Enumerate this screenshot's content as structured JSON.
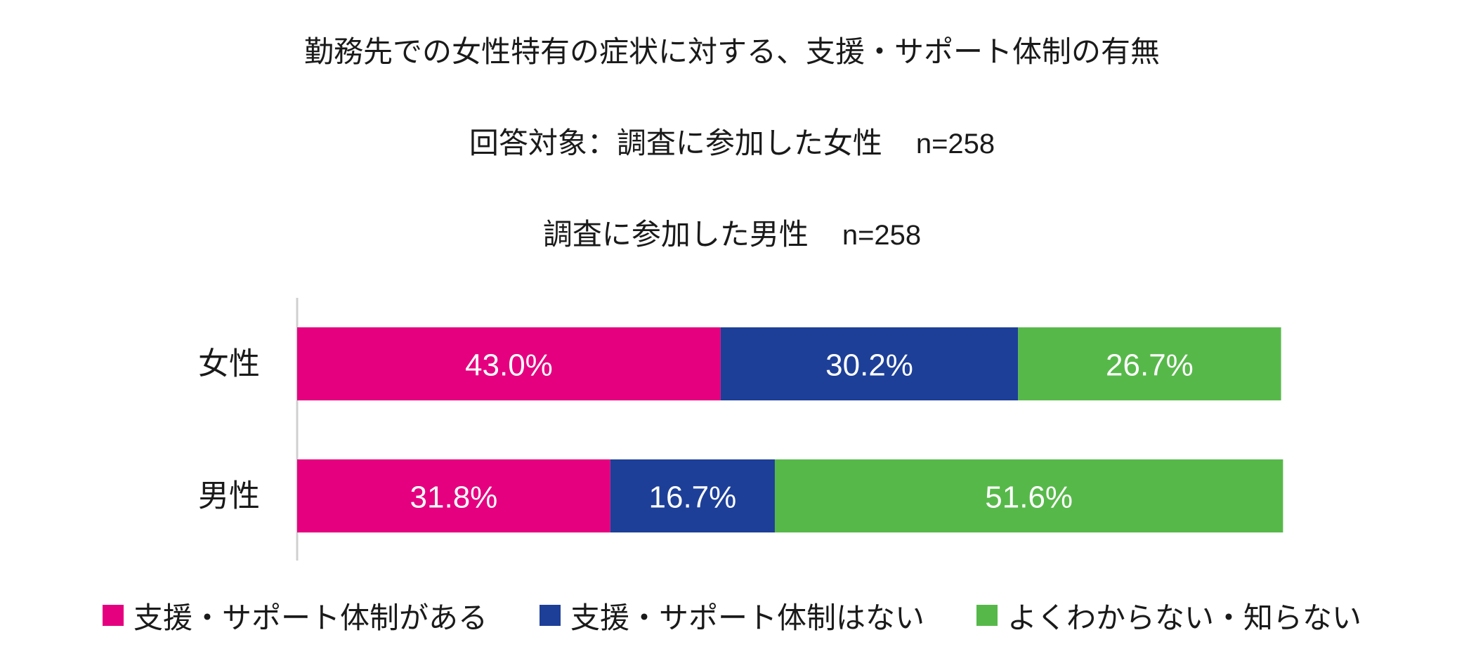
{
  "chart_data": {
    "type": "bar",
    "orientation": "horizontal",
    "stacked": true,
    "title": "勤務先での女性特有の症状に対する、支援・サポート体制の有無",
    "subtitle_lines": [
      {
        "label": "回答対象：調査に参加した女性",
        "n": "n=258"
      },
      {
        "label": "調査に参加した男性",
        "n": "n=258"
      }
    ],
    "categories": [
      "女性",
      "男性"
    ],
    "series": [
      {
        "name": "支援・サポート体制がある",
        "color": "#e4007f",
        "values": [
          43.0,
          31.8
        ],
        "labels": [
          "43.0%",
          "31.8%"
        ]
      },
      {
        "name": "支援・サポート体制はない",
        "color": "#1d3f98",
        "values": [
          30.2,
          16.7
        ],
        "labels": [
          "30.2%",
          "16.7%"
        ]
      },
      {
        "name": "よくわからない・知らない",
        "color": "#57b84a",
        "values": [
          26.7,
          51.6
        ],
        "labels": [
          "26.7%",
          "51.6%"
        ]
      }
    ],
    "xlim": [
      0,
      100
    ],
    "unit": "%",
    "grid": false,
    "legend_position": "bottom"
  }
}
